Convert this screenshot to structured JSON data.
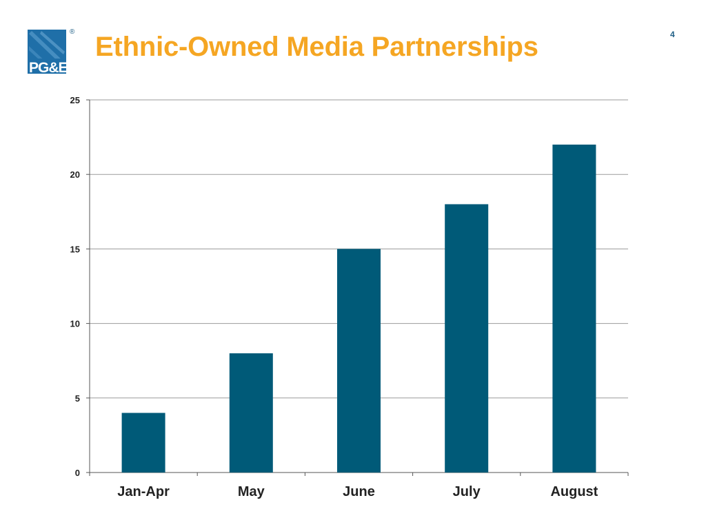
{
  "slide": {
    "title": "Ethnic-Owned Media Partnerships",
    "page_number": "4",
    "registered_mark": "®"
  },
  "logo": {
    "text": "PG&E",
    "icon": "pge-logo"
  },
  "colors": {
    "title": "#f5a623",
    "bar": "#005a78",
    "logo": "#1f6fa8",
    "grid": "#9a9a9a"
  },
  "chart_data": {
    "type": "bar",
    "categories": [
      "Jan-Apr",
      "May",
      "June",
      "July",
      "August"
    ],
    "values": [
      4,
      8,
      15,
      18,
      22
    ],
    "title": "",
    "xlabel": "",
    "ylabel": "",
    "ylim": [
      0,
      25
    ],
    "yticks": [
      0,
      5,
      10,
      15,
      20,
      25
    ],
    "grid": true,
    "legend": "none"
  }
}
